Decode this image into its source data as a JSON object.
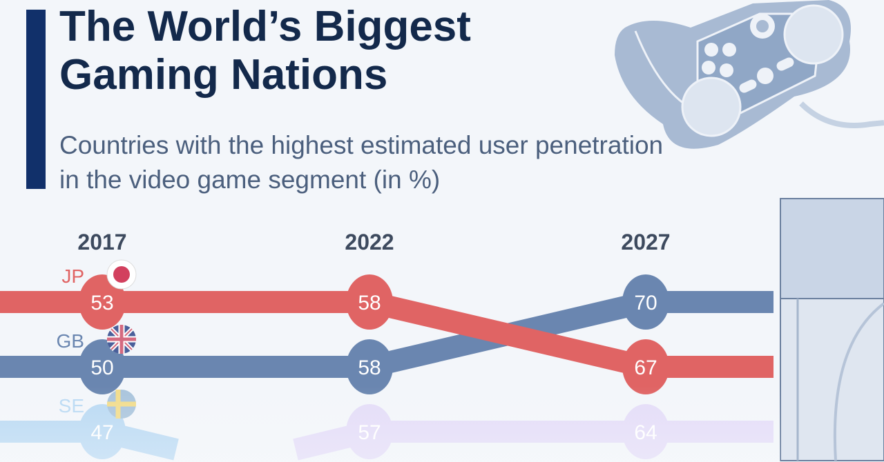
{
  "title": "The World’s Biggest Gaming Nations",
  "subtitle": "Countries with the highest estimated user penetration in the video game segment (in %)",
  "decorations": {
    "top_right": "game-controller-icon",
    "bottom_right": "game-console-icon"
  },
  "colors": {
    "accent": "#11306a",
    "title": "#13294b",
    "JP": "#e06464",
    "GB": "#6a86b0",
    "SE": "#b9d9f3",
    "fourth": "#e4dcf8"
  },
  "chart_data": {
    "type": "bump",
    "title": "The World’s Biggest Gaming Nations",
    "categories": [
      "2017",
      "2022",
      "2027"
    ],
    "series": [
      {
        "name": "JP",
        "flag": "japan-flag",
        "values": [
          53,
          58,
          67
        ],
        "ranks": [
          1,
          1,
          2
        ],
        "color": "#e06464"
      },
      {
        "name": "GB",
        "flag": "uk-flag",
        "values": [
          50,
          58,
          70
        ],
        "ranks": [
          2,
          2,
          1
        ],
        "color": "#6a86b0"
      },
      {
        "name": "SE",
        "flag": "sweden-flag",
        "values": [
          47,
          null,
          null
        ],
        "ranks": [
          3,
          4,
          null
        ],
        "color": "#b9d9f3"
      },
      {
        "name": "",
        "values": [
          null,
          57,
          64
        ],
        "ranks": [
          4,
          3,
          3
        ],
        "color": "#e4dcf8"
      }
    ]
  }
}
